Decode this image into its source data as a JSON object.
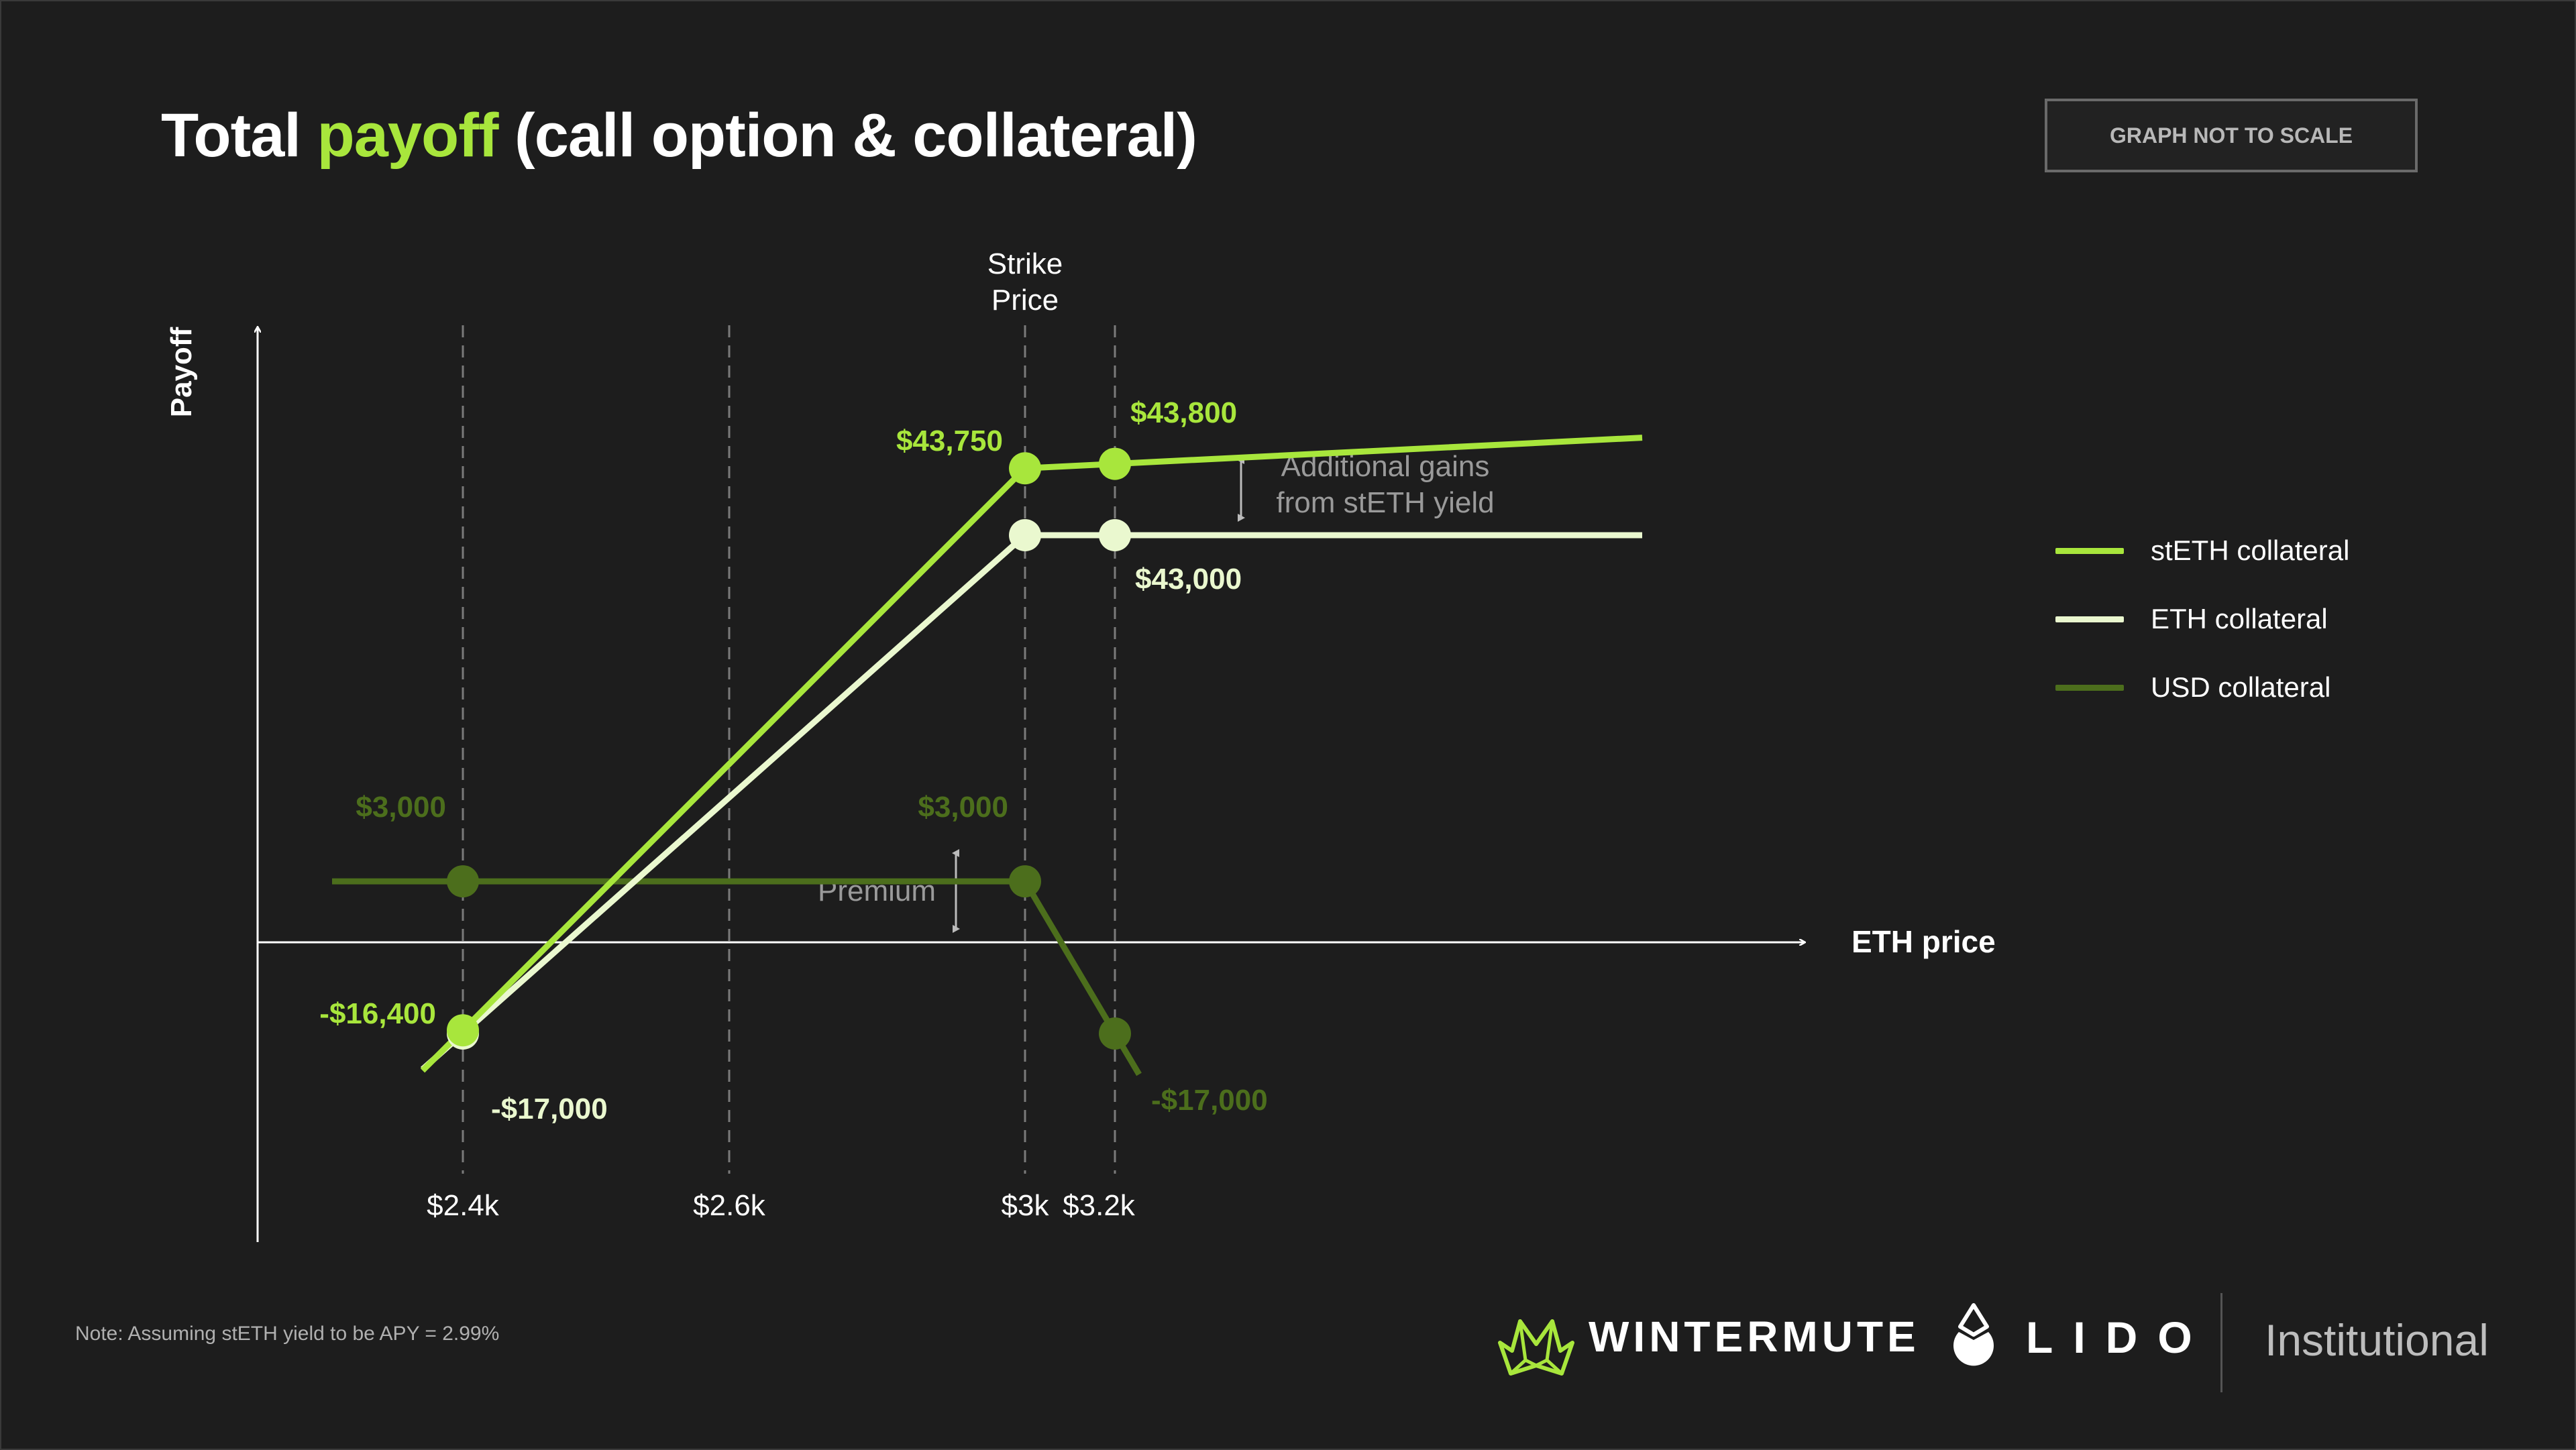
{
  "title": {
    "pre": "Total ",
    "highlight": "payoff",
    "post": " (call option & collateral)"
  },
  "scale_note": "GRAPH NOT TO SCALE",
  "note": "Note: Assuming stETH yield to be APY = 2.99%",
  "logos": {
    "wintermute": "WINTERMUTE",
    "lido": "LIDO",
    "institutional": "Institutional"
  },
  "colors": {
    "steth": "#a8e63c",
    "eth": "#eaf8cf",
    "usd": "#4c6e1c",
    "background": "#1d1d1d"
  },
  "legend": [
    {
      "label": "stETH collateral",
      "color": "#a8e63c"
    },
    {
      "label": "ETH collateral",
      "color": "#eaf8cf"
    },
    {
      "label": "USD collateral",
      "color": "#4c6e1c"
    }
  ],
  "chart_data": {
    "type": "line",
    "xlabel": "ETH price",
    "ylabel": "Payoff",
    "x_tick_labels": [
      "$2.4k",
      "$2.6k",
      "$3k",
      "$3.2k"
    ],
    "strike_label": [
      "Strike",
      "Price"
    ],
    "grid": "vertical dashed lines at tick prices",
    "series": [
      {
        "name": "stETH collateral",
        "key": "steth",
        "points": [
          {
            "x": "$2.4k",
            "y": -16400,
            "label": "-$16,400"
          },
          {
            "x": "$3k",
            "y": 43750,
            "label": "$43,750"
          },
          {
            "x": "$3.2k",
            "y": 43800,
            "label": "$43,800"
          }
        ]
      },
      {
        "name": "ETH collateral",
        "key": "eth",
        "points": [
          {
            "x": "$2.4k",
            "y": -17000,
            "label": "-$17,000"
          },
          {
            "x": "$3k",
            "y": 43000,
            "label": ""
          },
          {
            "x": "$3.2k",
            "y": 43000,
            "label": "$43,000"
          }
        ]
      },
      {
        "name": "USD collateral",
        "key": "usd",
        "points": [
          {
            "x": "$2.4k",
            "y": 3000,
            "label": "$3,000"
          },
          {
            "x": "$3k",
            "y": 3000,
            "label": "$3,000"
          },
          {
            "x": "$3.2k",
            "y": -17000,
            "label": "-$17,000"
          }
        ]
      }
    ],
    "annotations": {
      "steth_yield": [
        "Additional gains",
        "from stETH yield"
      ],
      "premium": "Premium"
    }
  }
}
